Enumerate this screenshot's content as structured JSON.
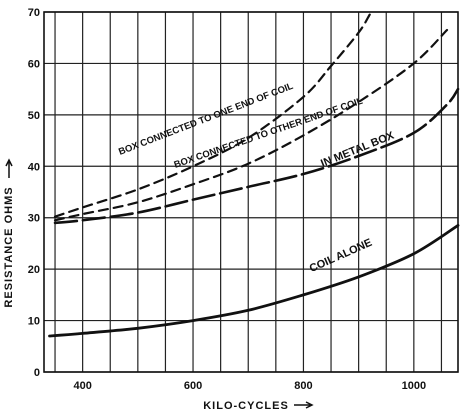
{
  "chart_data": {
    "type": "line",
    "xlabel": "KILO-CYCLES",
    "ylabel": "RESISTANCE OHMS",
    "xlim": [
      330,
      1080
    ],
    "ylim": [
      0,
      70
    ],
    "x_ticks": [
      400,
      600,
      800,
      1000
    ],
    "y_ticks": [
      0,
      10,
      20,
      30,
      40,
      50,
      60,
      70
    ],
    "x_grid": [
      350,
      450,
      500,
      550,
      650,
      700,
      750,
      850,
      900,
      950,
      1050
    ],
    "grid": true,
    "series": [
      {
        "name": "BOX CONNECTED TO ONE END OF COIL",
        "style": "dashed",
        "points": [
          [
            350,
            30.2
          ],
          [
            400,
            32
          ],
          [
            500,
            35.5
          ],
          [
            600,
            40
          ],
          [
            700,
            45.5
          ],
          [
            800,
            53.5
          ],
          [
            850,
            59.5
          ],
          [
            900,
            66
          ],
          [
            920,
            69.5
          ]
        ]
      },
      {
        "name": "BOX CONNECTED TO OTHER END OF COIL",
        "style": "dashed",
        "points": [
          [
            350,
            29.5
          ],
          [
            400,
            30.7
          ],
          [
            500,
            33
          ],
          [
            600,
            36.5
          ],
          [
            700,
            40.5
          ],
          [
            800,
            46
          ],
          [
            900,
            52.5
          ],
          [
            1000,
            60
          ],
          [
            1060,
            66.5
          ]
        ]
      },
      {
        "name": "IN METAL BOX",
        "style": "long-dash",
        "points": [
          [
            350,
            29
          ],
          [
            400,
            29.5
          ],
          [
            500,
            31
          ],
          [
            600,
            33.5
          ],
          [
            700,
            36
          ],
          [
            800,
            38.5
          ],
          [
            900,
            42
          ],
          [
            1000,
            46.5
          ],
          [
            1060,
            52
          ],
          [
            1080,
            55
          ]
        ]
      },
      {
        "name": "COIL ALONE",
        "style": "solid",
        "points": [
          [
            340,
            7
          ],
          [
            400,
            7.5
          ],
          [
            500,
            8.5
          ],
          [
            600,
            10
          ],
          [
            700,
            12
          ],
          [
            800,
            15
          ],
          [
            900,
            18.5
          ],
          [
            1000,
            23
          ],
          [
            1080,
            28.5
          ]
        ]
      }
    ]
  }
}
